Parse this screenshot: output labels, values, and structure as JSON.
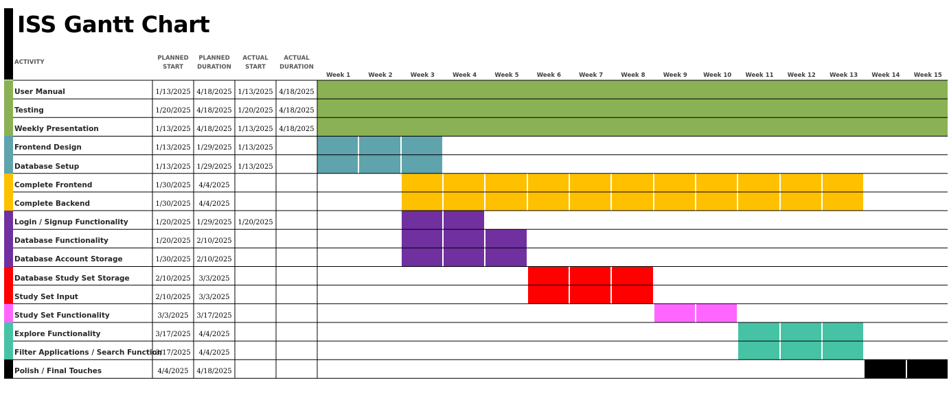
{
  "title": "ISS Gantt Chart",
  "headers": {
    "activity": "ACTIVITY",
    "planned_start": [
      "PLANNED",
      "START"
    ],
    "planned_duration": [
      "PLANNED",
      "DURATION"
    ],
    "actual_start": [
      "ACTUAL",
      "START"
    ],
    "actual_duration": [
      "ACTUAL",
      "DURATION"
    ]
  },
  "chart_data": {
    "type": "table",
    "weeks": [
      "Week 1",
      "Week 2",
      "Week 3",
      "Week 4",
      "Week 5",
      "Week 6",
      "Week 7",
      "Week 8",
      "Week 9",
      "Week 10",
      "Week 11",
      "Week 12",
      "Week 13",
      "Week 14",
      "Week 15"
    ],
    "rows": [
      {
        "activity": "User Manual",
        "planned_start": "1/13/2025",
        "planned_duration": "4/18/2025",
        "actual_start": "1/13/2025",
        "actual_duration": "4/18/2025",
        "start_week": 1,
        "end_week": 15,
        "color": "#8AB153",
        "segmented": false
      },
      {
        "activity": "Testing",
        "planned_start": "1/20/2025",
        "planned_duration": "4/18/2025",
        "actual_start": "1/20/2025",
        "actual_duration": "4/18/2025",
        "start_week": 1,
        "end_week": 15,
        "color": "#8AB153",
        "segmented": false
      },
      {
        "activity": "Weekly Presentation",
        "planned_start": "1/13/2025",
        "planned_duration": "4/18/2025",
        "actual_start": "1/13/2025",
        "actual_duration": "4/18/2025",
        "start_week": 1,
        "end_week": 15,
        "color": "#8AB153",
        "segmented": false
      },
      {
        "activity": "Frontend Design",
        "planned_start": "1/13/2025",
        "planned_duration": "1/29/2025",
        "actual_start": "1/13/2025",
        "actual_duration": "",
        "start_week": 1,
        "end_week": 3,
        "color": "#5FA3AC",
        "segmented": true
      },
      {
        "activity": "Database Setup",
        "planned_start": "1/13/2025",
        "planned_duration": "1/29/2025",
        "actual_start": "1/13/2025",
        "actual_duration": "",
        "start_week": 1,
        "end_week": 3,
        "color": "#5FA3AC",
        "segmented": true
      },
      {
        "activity": "Complete Frontend",
        "planned_start": "1/30/2025",
        "planned_duration": "4/4/2025",
        "actual_start": "",
        "actual_duration": "",
        "start_week": 3,
        "end_week": 13,
        "color": "#FFC000",
        "segmented": true
      },
      {
        "activity": "Complete Backend",
        "planned_start": "1/30/2025",
        "planned_duration": "4/4/2025",
        "actual_start": "",
        "actual_duration": "",
        "start_week": 3,
        "end_week": 13,
        "color": "#FFC000",
        "segmented": true
      },
      {
        "activity": "Login / Signup Functionality",
        "planned_start": "1/20/2025",
        "planned_duration": "1/29/2025",
        "actual_start": "1/20/2025",
        "actual_duration": "",
        "start_week": 3,
        "end_week": 4,
        "color": "#7030A0",
        "segmented": true
      },
      {
        "activity": "Database Functionality",
        "planned_start": "1/20/2025",
        "planned_duration": "2/10/2025",
        "actual_start": "",
        "actual_duration": "",
        "start_week": 3,
        "end_week": 5,
        "color": "#7030A0",
        "segmented": true
      },
      {
        "activity": "Database Account Storage",
        "planned_start": "1/30/2025",
        "planned_duration": "2/10/2025",
        "actual_start": "",
        "actual_duration": "",
        "start_week": 3,
        "end_week": 5,
        "color": "#7030A0",
        "segmented": true
      },
      {
        "activity": "Database Study Set Storage",
        "planned_start": "2/10/2025",
        "planned_duration": "3/3/2025",
        "actual_start": "",
        "actual_duration": "",
        "start_week": 6,
        "end_week": 8,
        "color": "#FF0000",
        "segmented": true
      },
      {
        "activity": "Study Set Input",
        "planned_start": "2/10/2025",
        "planned_duration": "3/3/2025",
        "actual_start": "",
        "actual_duration": "",
        "start_week": 6,
        "end_week": 8,
        "color": "#FF0000",
        "segmented": true
      },
      {
        "activity": "Study Set Functionality",
        "planned_start": "3/3/2025",
        "planned_duration": "3/17/2025",
        "actual_start": "",
        "actual_duration": "",
        "start_week": 9,
        "end_week": 10,
        "color": "#FF66FF",
        "segmented": true
      },
      {
        "activity": "Explore Functionality",
        "planned_start": "3/17/2025",
        "planned_duration": "4/4/2025",
        "actual_start": "",
        "actual_duration": "",
        "start_week": 11,
        "end_week": 13,
        "color": "#46C3A4",
        "segmented": true
      },
      {
        "activity": "Filter Applications / Search Function",
        "planned_start": "3/17/2025",
        "planned_duration": "4/4/2025",
        "actual_start": "",
        "actual_duration": "",
        "start_week": 11,
        "end_week": 13,
        "color": "#46C3A4",
        "segmented": true
      },
      {
        "activity": "Polish / Final Touches",
        "planned_start": "4/4/2025",
        "planned_duration": "4/18/2025",
        "actual_start": "",
        "actual_duration": "",
        "start_week": 14,
        "end_week": 15,
        "color": "#000000",
        "segmented": true
      }
    ]
  }
}
